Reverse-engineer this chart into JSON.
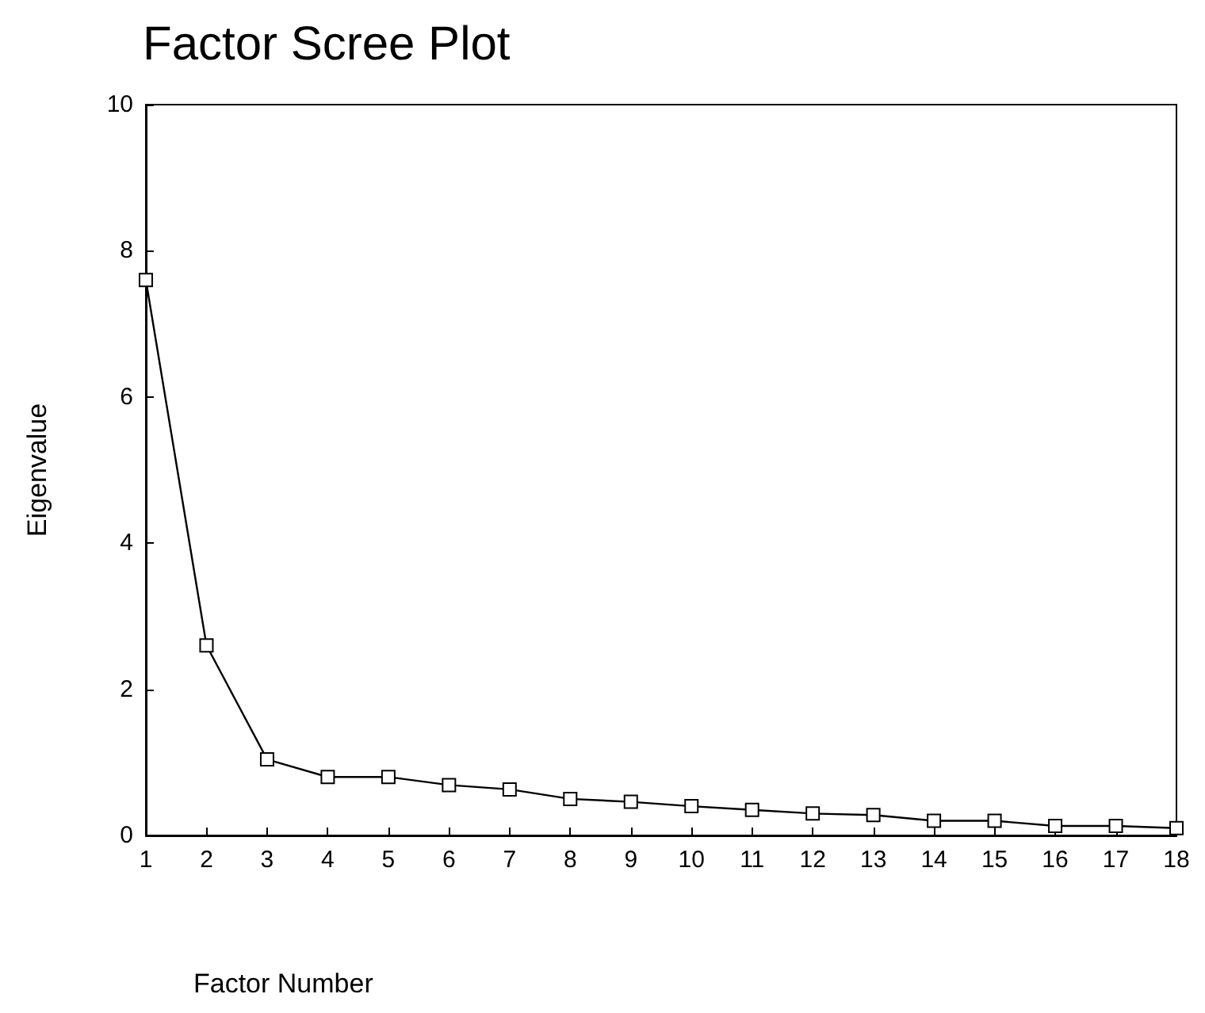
{
  "chart_data": {
    "type": "line",
    "title": "Factor Scree Plot",
    "xlabel": "Factor Number",
    "ylabel": "Eigenvalue",
    "x": [
      1,
      2,
      3,
      4,
      5,
      6,
      7,
      8,
      9,
      10,
      11,
      12,
      13,
      14,
      15,
      16,
      17,
      18
    ],
    "series": [
      {
        "color": "#000000",
        "values": [
          7.6,
          2.6,
          1.04,
          0.8,
          0.8,
          0.69,
          0.63,
          0.5,
          0.46,
          0.4,
          0.35,
          0.3,
          0.28,
          0.2,
          0.2,
          0.13,
          0.13,
          0.1
        ]
      }
    ],
    "xlim": [
      1,
      18
    ],
    "xticks": [
      1,
      2,
      3,
      4,
      5,
      6,
      7,
      8,
      9,
      10,
      11,
      12,
      13,
      14,
      15,
      16,
      17,
      18
    ],
    "ylim": [
      0,
      10
    ],
    "yticks": [
      0,
      2,
      4,
      6,
      8,
      10
    ],
    "grid": false,
    "marker": "square",
    "line_style": "solid"
  }
}
